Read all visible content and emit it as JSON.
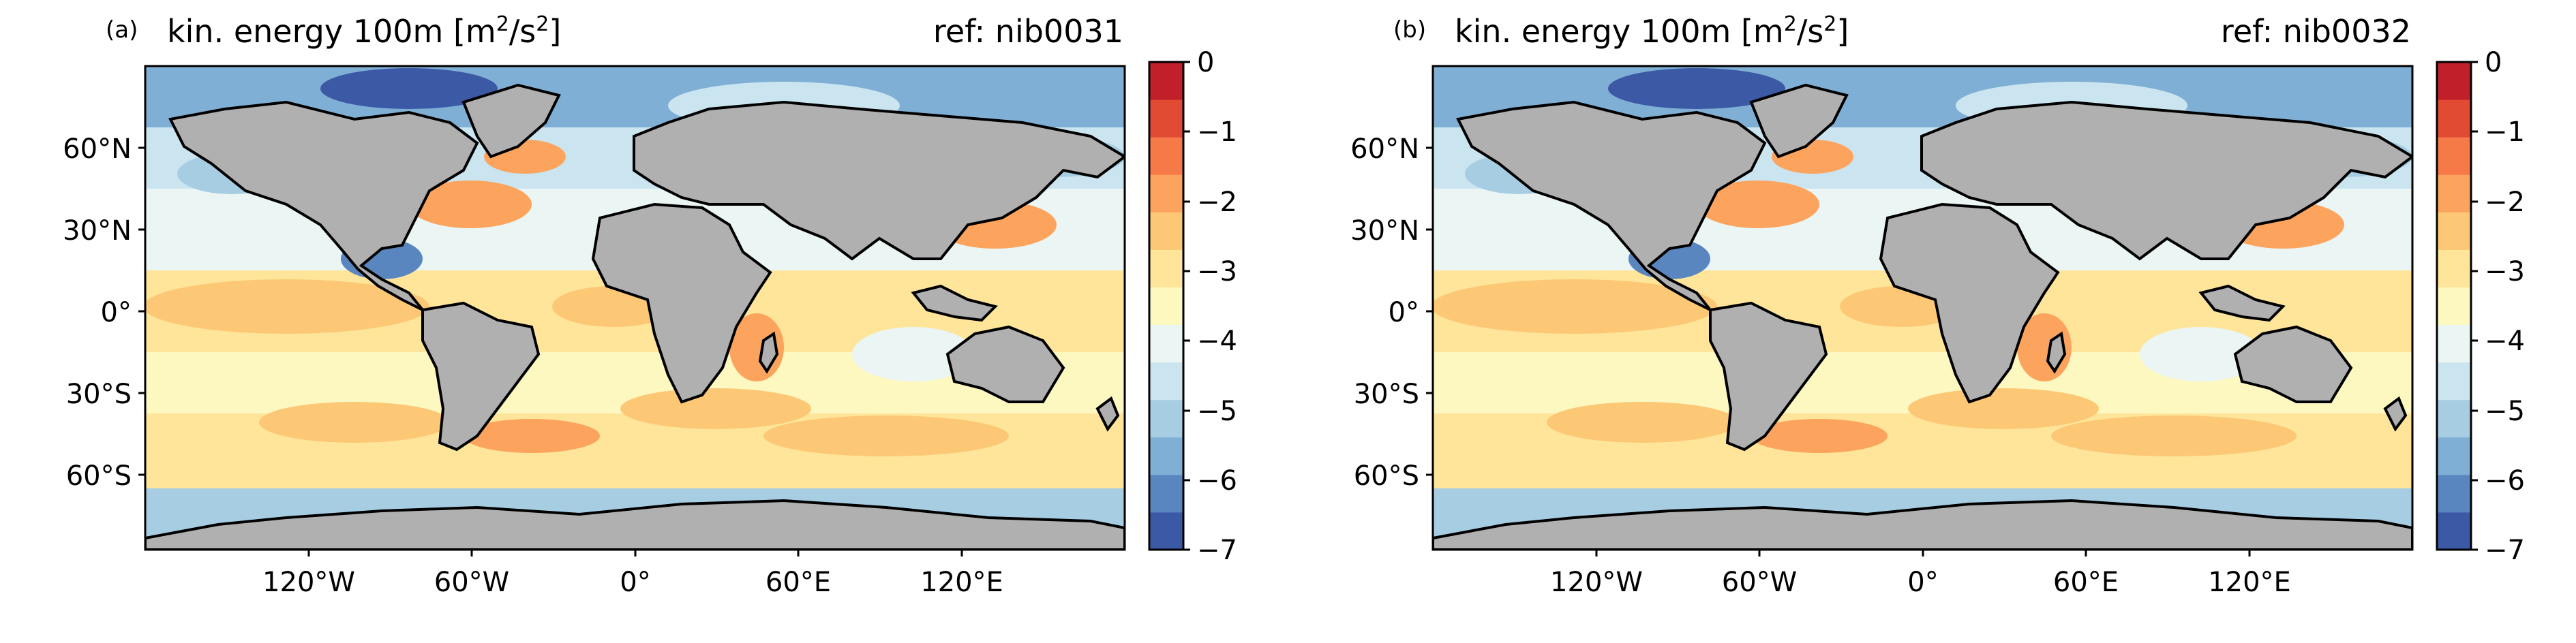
{
  "colors": {
    "land": "#b0b0b0",
    "coastline": "#000000",
    "scale": [
      "#3c59a6",
      "#5a86c0",
      "#7fafd4",
      "#a7cde3",
      "#cbe5f0",
      "#eaf5f4",
      "#fdf7c0",
      "#fee59a",
      "#fdc876",
      "#fca45e",
      "#f67a48",
      "#e14a33",
      "#c11f29"
    ]
  },
  "panels": [
    {
      "letter": "(a)",
      "title": "kin. energy 100m [m",
      "title_sup": "2",
      "title_mid": "/s",
      "title_sup2": "2",
      "title_end": "]",
      "ref": "ref: nib0031"
    },
    {
      "letter": "(b)",
      "title": "kin. energy 100m [m",
      "title_sup": "2",
      "title_mid": "/s",
      "title_sup2": "2",
      "title_end": "]",
      "ref": "ref: nib0032"
    }
  ],
  "axes": {
    "lat_ticks": [
      "60°N",
      "30°N",
      "0°",
      "30°S",
      "60°S"
    ],
    "lon_ticks": [
      "120°W",
      "60°W",
      "0°",
      "60°E",
      "120°E"
    ]
  },
  "colorbar": {
    "ticks": [
      "0",
      "−1",
      "−2",
      "−3",
      "−4",
      "−5",
      "−6",
      "−7"
    ],
    "range": [
      -7,
      0
    ]
  }
}
